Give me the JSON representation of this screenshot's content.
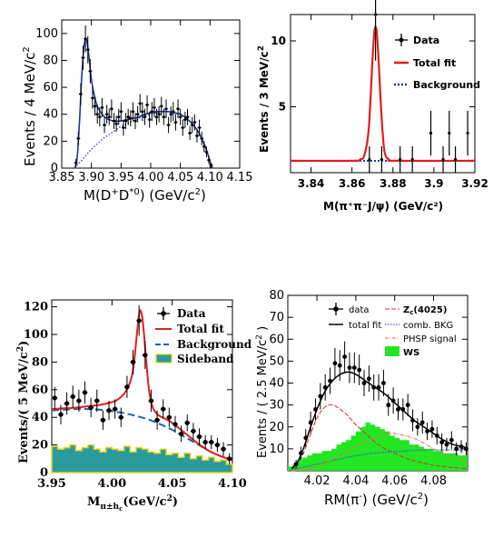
{
  "colors": {
    "fit_blue": "#1a33a0",
    "bkg_dotted": "#2a3ba8",
    "fit_red": "#e41d1d",
    "bkg_dash_blue": "#1f5fb0",
    "sideband_fill": "#2a9a9a",
    "sideband_edge": "#e8d21c",
    "ws_green": "#22e622",
    "zc_red": "#d23a3a",
    "comb_blue": "#3c5ad0",
    "phsp_orange": "#e87040",
    "data_black": "#000000"
  },
  "chart_data": [
    {
      "type": "scatter",
      "xlabel_main": "M(D",
      "xlabel_sup1": "+",
      "xlabel_mid": "D",
      "xlabel_sup2": "*0",
      "xlabel_tail": ") (GeV/c",
      "xlabel_sup3": "2",
      "xlabel_end": ")",
      "ylabel_main": "Events / 4 MeV/c",
      "ylabel_sup": "2",
      "xlim": [
        3.85,
        4.15
      ],
      "ylim": [
        0,
        110
      ],
      "xticks": [
        "3.85",
        "3.90",
        "3.95",
        "4.00",
        "4.05",
        "4.10",
        "4.15"
      ],
      "yticks": [
        "0",
        "20",
        "40",
        "60",
        "80",
        "100"
      ],
      "series": [
        {
          "x": [
            3.874,
            3.878,
            3.882,
            3.886,
            3.89,
            3.894,
            3.898,
            3.902,
            3.906,
            3.91,
            3.914,
            3.918,
            3.922,
            3.926,
            3.93,
            3.934,
            3.938,
            3.942,
            3.946,
            3.95,
            3.954,
            3.958,
            3.962,
            3.966,
            3.97,
            3.974,
            3.978,
            3.982,
            3.986,
            3.99,
            3.994,
            3.998,
            4.002,
            4.006,
            4.01,
            4.014,
            4.018,
            4.022,
            4.026,
            4.03,
            4.034,
            4.038,
            4.042,
            4.046,
            4.05,
            4.054,
            4.058,
            4.062,
            4.066,
            4.07,
            4.074,
            4.078,
            4.082,
            4.086,
            4.09,
            4.094,
            4.098,
            4.102
          ],
          "y": [
            4,
            22,
            55,
            82,
            96,
            88,
            72,
            52,
            46,
            40,
            38,
            45,
            32,
            40,
            38,
            44,
            35,
            33,
            38,
            42,
            30,
            35,
            38,
            37,
            42,
            35,
            40,
            48,
            42,
            38,
            47,
            36,
            42,
            45,
            38,
            40,
            46,
            38,
            44,
            32,
            40,
            42,
            34,
            44,
            38,
            30,
            36,
            38,
            26,
            32,
            34,
            24,
            30,
            22,
            16,
            12,
            6,
            2
          ],
          "yerr": [
            3,
            5,
            8,
            9,
            10,
            10,
            9,
            8,
            7,
            7,
            7,
            7,
            6,
            7,
            6,
            7,
            6,
            6,
            6,
            7,
            6,
            6,
            6,
            6,
            7,
            6,
            6,
            7,
            7,
            6,
            7,
            6,
            7,
            7,
            6,
            6,
            7,
            6,
            7,
            6,
            6,
            7,
            6,
            7,
            6,
            6,
            6,
            6,
            5,
            6,
            6,
            5,
            6,
            5,
            4,
            4,
            3,
            2
          ]
        }
      ],
      "fit_x": [
        3.872,
        3.876,
        3.88,
        3.884,
        3.888,
        3.892,
        3.896,
        3.9,
        3.905,
        3.91,
        3.92,
        3.93,
        3.94,
        3.95,
        3.96,
        3.97,
        3.98,
        3.99,
        4.0,
        4.01,
        4.02,
        4.03,
        4.04,
        4.05,
        4.06,
        4.07,
        4.08,
        4.09,
        4.095,
        4.1,
        4.104
      ],
      "fit_y": [
        0,
        8,
        35,
        70,
        92,
        95,
        82,
        66,
        54,
        46,
        39,
        36,
        35,
        35,
        36,
        37,
        38,
        40,
        41,
        42,
        42,
        42,
        41,
        40,
        37,
        33,
        27,
        18,
        12,
        5,
        0
      ],
      "bkg_x": [
        3.872,
        3.88,
        3.89,
        3.9,
        3.91,
        3.92,
        3.93,
        3.94,
        3.95,
        3.96,
        3.97,
        3.98,
        3.99,
        4.0,
        4.01,
        4.02,
        4.03,
        4.04,
        4.05,
        4.06,
        4.07,
        4.08,
        4.09,
        4.095,
        4.1,
        4.104
      ],
      "bkg_y": [
        0,
        4,
        9,
        14,
        18,
        22,
        25,
        28,
        31,
        33,
        35,
        37,
        39,
        40,
        41,
        42,
        42,
        41,
        40,
        37,
        33,
        27,
        18,
        12,
        5,
        0
      ]
    },
    {
      "type": "scatter",
      "xlabel": "M(π⁺π⁻J/ψ) (GeV/c²)",
      "ylabel_main": "Events / 3 MeV/c",
      "ylabel_sup": "2",
      "xlim": [
        3.83,
        3.92
      ],
      "ylim": [
        0,
        12
      ],
      "xticks": [
        "3.84",
        "3.86",
        "3.88",
        "3.9",
        "3.92"
      ],
      "yticks": [
        "5",
        "10"
      ],
      "legend": [
        "Data",
        "Total fit",
        "Background"
      ],
      "series": [
        {
          "x": [
            3.8415,
            3.8445,
            3.8475,
            3.8505,
            3.8535,
            3.8565,
            3.8595,
            3.8625,
            3.8655,
            3.8685,
            3.8715,
            3.8745,
            3.8775,
            3.8805,
            3.8835,
            3.8865,
            3.8895,
            3.8925,
            3.8955,
            3.8985,
            3.9015,
            3.9045,
            3.9075,
            3.9105,
            3.9135,
            3.9165
          ],
          "y": [
            0,
            0,
            0,
            0,
            0,
            0,
            0,
            0,
            0,
            1,
            12,
            1,
            0,
            0,
            1,
            0,
            1,
            0,
            0,
            3,
            0,
            1,
            3,
            1,
            0,
            3
          ],
          "yerr": [
            0,
            0,
            0,
            0,
            0,
            0,
            0,
            0,
            0,
            1,
            3.5,
            1,
            0,
            0,
            1,
            0,
            1,
            0,
            0,
            1.7,
            0,
            1,
            1.7,
            1,
            0,
            1.7
          ]
        }
      ],
      "fit_x": [
        3.83,
        3.86,
        3.864,
        3.866,
        3.868,
        3.869,
        3.87,
        3.871,
        3.872,
        3.873,
        3.874,
        3.875,
        3.876,
        3.878,
        3.882,
        3.92
      ],
      "fit_y": [
        0.9,
        0.9,
        1.0,
        1.3,
        3.0,
        5.5,
        8.5,
        10.8,
        10.8,
        8.5,
        5.5,
        3.0,
        1.5,
        1.0,
        0.9,
        0.9
      ],
      "bkg_y": 0.9
    },
    {
      "type": "scatter",
      "xlabel_main": "M",
      "xlabel_sub": "π±h",
      "xlabel_subsub": "c",
      "xlabel_tail": "(GeV/c",
      "xlabel_sup": "2",
      "xlabel_end": ")",
      "ylabel_main": "Events/( 5 MeV/c",
      "ylabel_sup": "2",
      "ylabel_end": ")",
      "xlim": [
        3.95,
        4.1
      ],
      "ylim": [
        0,
        125
      ],
      "xticks": [
        "3.95",
        "4.00",
        "4.05",
        "4.10"
      ],
      "yticks": [
        "0",
        "20",
        "40",
        "60",
        "80",
        "100",
        "120"
      ],
      "legend": [
        "Data",
        "Total fit",
        "Background",
        "Sideband"
      ],
      "series": [
        {
          "x": [
            3.9525,
            3.9575,
            3.9625,
            3.9675,
            3.9725,
            3.9775,
            3.9825,
            3.9875,
            3.9925,
            3.9975,
            4.0025,
            4.0075,
            4.0125,
            4.0175,
            4.0225,
            4.0275,
            4.0325,
            4.0375,
            4.0425,
            4.0475,
            4.0525,
            4.0575,
            4.0625,
            4.0675,
            4.0725,
            4.0775,
            4.0825,
            4.0875,
            4.0925,
            4.0975
          ],
          "y": [
            54,
            42,
            50,
            55,
            52,
            58,
            47,
            52,
            38,
            45,
            46,
            40,
            62,
            80,
            110,
            85,
            52,
            38,
            46,
            40,
            35,
            28,
            36,
            30,
            26,
            22,
            22,
            20,
            17,
            10
          ],
          "yerr": [
            8,
            7,
            8,
            8,
            8,
            8,
            7,
            8,
            7,
            7,
            7,
            7,
            8,
            9,
            11,
            10,
            8,
            7,
            7,
            7,
            6,
            6,
            6,
            6,
            6,
            5,
            5,
            5,
            5,
            4
          ]
        }
      ],
      "fit_x": [
        3.95,
        3.96,
        3.97,
        3.98,
        3.99,
        4.0,
        4.005,
        4.01,
        4.014,
        4.017,
        4.019,
        4.021,
        4.023,
        4.025,
        4.027,
        4.029,
        4.031,
        4.034,
        4.038,
        4.044,
        4.05,
        4.06,
        4.07,
        4.08,
        4.09,
        4.1
      ],
      "fit_y": [
        46,
        46.5,
        47,
        48,
        49,
        51,
        53,
        57,
        63,
        72,
        85,
        103,
        117,
        113,
        96,
        75,
        58,
        47,
        42,
        39,
        36,
        29,
        22,
        16,
        12,
        9
      ],
      "bkg_x": [
        3.95,
        3.96,
        3.97,
        3.98,
        3.99,
        4.0,
        4.01,
        4.02,
        4.03,
        4.04,
        4.05,
        4.06,
        4.07,
        4.08,
        4.09,
        4.1
      ],
      "bkg_y": [
        45,
        45.5,
        46,
        46,
        45.5,
        44.5,
        43,
        41,
        38.5,
        35,
        31,
        26,
        21,
        16,
        12,
        9
      ],
      "sideband_edges": [
        3.95,
        3.955,
        3.96,
        3.965,
        3.97,
        3.975,
        3.98,
        3.985,
        3.99,
        3.995,
        4.0,
        4.005,
        4.01,
        4.015,
        4.02,
        4.025,
        4.03,
        4.035,
        4.04,
        4.045,
        4.05,
        4.055,
        4.06,
        4.065,
        4.07,
        4.075,
        4.08,
        4.085,
        4.09,
        4.095,
        4.1
      ],
      "sideband_values": [
        19,
        17,
        18,
        20,
        16,
        18,
        20,
        17,
        15,
        18,
        17,
        16,
        19,
        15,
        18,
        17,
        15,
        14,
        17,
        13,
        14,
        11,
        14,
        10,
        12,
        9,
        11,
        8,
        9,
        6
      ]
    },
    {
      "type": "scatter",
      "xlabel_main": "RM(π",
      "xlabel_sup": "-",
      "xlabel_tail": ") (GeV/c",
      "xlabel_sup2": "2",
      "xlabel_end": ")",
      "ylabel_main": "Events / ( 2.5 MeV/c",
      "ylabel_sup": "2",
      "ylabel_end": " )",
      "xlim": [
        4.005,
        4.0975
      ],
      "ylim": [
        0,
        80
      ],
      "xticks": [
        "4.02",
        "4.04",
        "4.06",
        "4.08"
      ],
      "yticks": [
        "10",
        "20",
        "30",
        "40",
        "50",
        "60",
        "70",
        "80"
      ],
      "legend_left": [
        "data",
        "total fit"
      ],
      "legend_right_main": "Z",
      "legend_right_sub": "c",
      "legend_right_tail": "(4025)",
      "legend_right": [
        "comb. BKG",
        "PHSP signal",
        "WS"
      ],
      "series": [
        {
          "x": [
            4.00925,
            4.01175,
            4.01425,
            4.01675,
            4.01925,
            4.02175,
            4.02425,
            4.02675,
            4.02925,
            4.03175,
            4.03425,
            4.03675,
            4.03925,
            4.04175,
            4.04425,
            4.04675,
            4.04925,
            4.05175,
            4.05425,
            4.05675,
            4.05925,
            4.06175,
            4.06425,
            4.06675,
            4.06925,
            4.07175,
            4.07425,
            4.07675,
            4.07925,
            4.08175,
            4.08425,
            4.08675,
            4.08925,
            4.09175,
            4.09425,
            4.09675
          ],
          "y": [
            3,
            8,
            15,
            22,
            28,
            34,
            38,
            41,
            49,
            48,
            52,
            47,
            47,
            46,
            40,
            42,
            38,
            38,
            40,
            30,
            32,
            28,
            28,
            30,
            23,
            20,
            22,
            18,
            19,
            16,
            13,
            12,
            14,
            10,
            11,
            10
          ],
          "yerr": [
            2,
            3,
            4,
            5,
            5,
            6,
            6,
            6,
            7,
            7,
            7,
            7,
            7,
            7,
            6,
            6,
            6,
            6,
            6,
            5,
            6,
            5,
            5,
            5,
            5,
            4,
            5,
            4,
            4,
            4,
            4,
            3,
            4,
            3,
            3,
            3
          ]
        }
      ],
      "total_x": [
        4.007,
        4.01,
        4.013,
        4.016,
        4.02,
        4.024,
        4.028,
        4.032,
        4.036,
        4.04,
        4.045,
        4.05,
        4.055,
        4.06,
        4.065,
        4.07,
        4.075,
        4.08,
        4.085,
        4.09,
        4.095,
        4.0975
      ],
      "total_y": [
        1,
        4,
        10,
        18,
        28,
        36,
        41,
        44,
        45,
        44,
        41,
        38,
        35,
        31,
        27,
        23,
        20,
        17,
        14,
        12,
        11,
        10
      ],
      "zc_x": [
        4.007,
        4.012,
        4.016,
        4.02,
        4.024,
        4.028,
        4.032,
        4.036,
        4.04,
        4.045,
        4.05,
        4.055,
        4.06,
        4.065,
        4.07,
        4.075,
        4.08,
        4.085,
        4.09,
        4.0975
      ],
      "zc_y": [
        0,
        6,
        15,
        24,
        29,
        30,
        28,
        25,
        21,
        17,
        13,
        10,
        8,
        6,
        4.5,
        3.5,
        2.5,
        2,
        1.5,
        1
      ],
      "comb_x": [
        4.007,
        4.015,
        4.025,
        4.035,
        4.045,
        4.055,
        4.065,
        4.075,
        4.085,
        4.0975
      ],
      "comb_y": [
        0.5,
        2,
        4,
        6,
        7.5,
        8.5,
        9,
        9.5,
        9.5,
        9.5
      ],
      "phsp_x": [
        4.007,
        4.02,
        4.03,
        4.04,
        4.05,
        4.058,
        4.065,
        4.072,
        4.08,
        4.088,
        4.0975
      ],
      "phsp_y": [
        0,
        2,
        6,
        11,
        15,
        17,
        16,
        14,
        10,
        7,
        4
      ],
      "ws_edges": [
        4.005,
        4.0075,
        4.01,
        4.0125,
        4.015,
        4.0175,
        4.02,
        4.0225,
        4.025,
        4.0275,
        4.03,
        4.0325,
        4.035,
        4.0375,
        4.04,
        4.0425,
        4.045,
        4.0475,
        4.05,
        4.0525,
        4.055,
        4.0575,
        4.06,
        4.0625,
        4.065,
        4.0675,
        4.07,
        4.0725,
        4.075,
        4.0775,
        4.08,
        4.0825,
        4.085,
        4.0875,
        4.09,
        4.0925,
        4.095,
        4.0975
      ],
      "ws_values": [
        2,
        3,
        5,
        6,
        7,
        8,
        8,
        9,
        9,
        10,
        12,
        13,
        14,
        16,
        18,
        20,
        22,
        21,
        20,
        19,
        18,
        16,
        15,
        14,
        14,
        12,
        12,
        11,
        10,
        10,
        9,
        9,
        8,
        8,
        8,
        7,
        7
      ]
    }
  ]
}
